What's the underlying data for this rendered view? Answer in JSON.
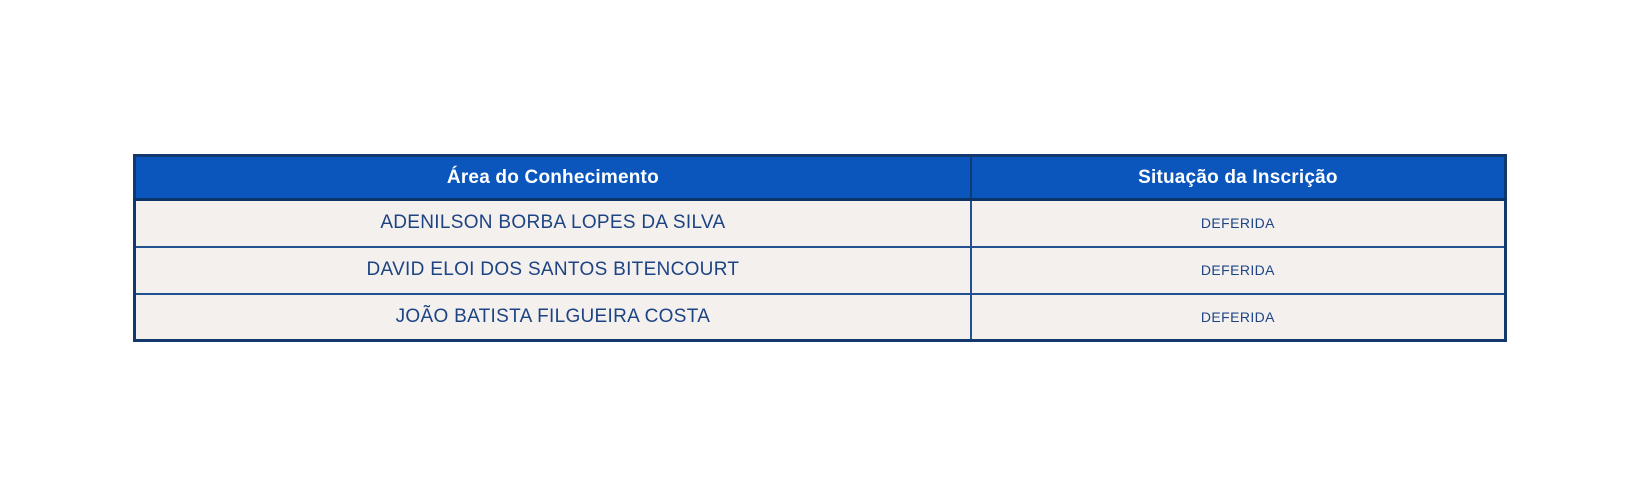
{
  "page": {
    "background_color": "#ffffff"
  },
  "table": {
    "kind": "registration-status-table",
    "colors": {
      "header_background": "#0a56bd",
      "header_text": "#ffffff",
      "row_background": "#f4f0ee",
      "row_text": "#1c4383",
      "border_outer": "#12386e",
      "border_inner": "#235091"
    },
    "columns": [
      {
        "label": "Área do Conhecimento"
      },
      {
        "label": "Situação da Inscrição"
      }
    ],
    "rows": [
      {
        "name": "ADENILSON BORBA LOPES DA SILVA",
        "status": "DEFERIDA"
      },
      {
        "name": "DAVID ELOI DOS SANTOS BITENCOURT",
        "status": "DEFERIDA"
      },
      {
        "name": "JOÃO BATISTA FILGUEIRA COSTA",
        "status": "DEFERIDA"
      }
    ]
  }
}
